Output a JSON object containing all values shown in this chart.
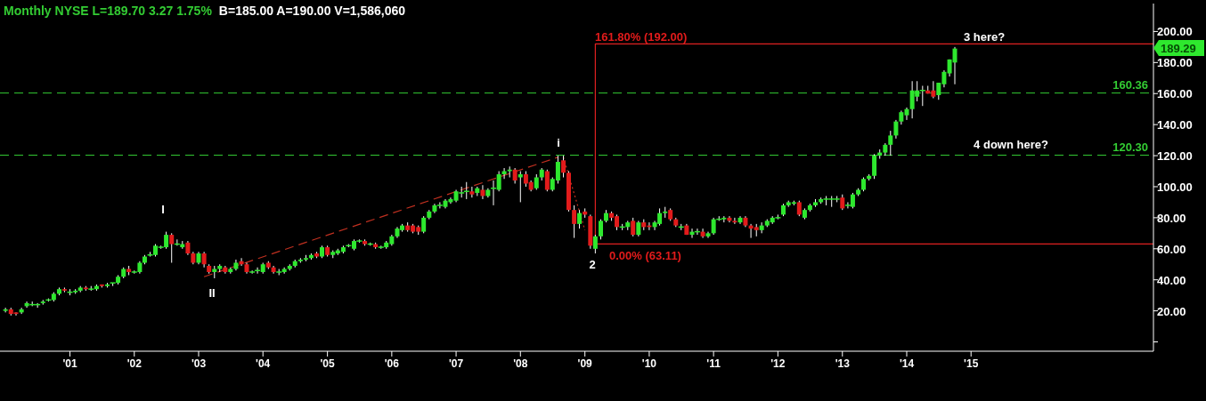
{
  "chart_data": {
    "type": "candlestick",
    "title": "Monthly  NYSE  L=189.70  3.27  1.75%",
    "subtitle": "B=185.00  A=190.00  V=1,586,060",
    "x": [
      "2000-01",
      "2000-02",
      "2000-03",
      "2000-04",
      "2000-05",
      "2000-06",
      "2000-07",
      "2000-08",
      "2000-09",
      "2000-10",
      "2000-11",
      "2000-12",
      "2001-01",
      "2001-02",
      "2001-03",
      "2001-04",
      "2001-05",
      "2001-06",
      "2001-07",
      "2001-08",
      "2001-09",
      "2001-10",
      "2001-11",
      "2001-12",
      "2002-01",
      "2002-02",
      "2002-03",
      "2002-04",
      "2002-05",
      "2002-06",
      "2002-07",
      "2002-08",
      "2002-09",
      "2002-10",
      "2002-11",
      "2002-12",
      "2003-01",
      "2003-02",
      "2003-03",
      "2003-04",
      "2003-05",
      "2003-06",
      "2003-07",
      "2003-08",
      "2003-09",
      "2003-10",
      "2003-11",
      "2003-12",
      "2004-01",
      "2004-02",
      "2004-03",
      "2004-04",
      "2004-05",
      "2004-06",
      "2004-07",
      "2004-08",
      "2004-09",
      "2004-10",
      "2004-11",
      "2004-12",
      "2005-01",
      "2005-02",
      "2005-03",
      "2005-04",
      "2005-05",
      "2005-06",
      "2005-07",
      "2005-08",
      "2005-09",
      "2005-10",
      "2005-11",
      "2005-12",
      "2006-01",
      "2006-02",
      "2006-03",
      "2006-04",
      "2006-05",
      "2006-06",
      "2006-07",
      "2006-08",
      "2006-09",
      "2006-10",
      "2006-11",
      "2006-12",
      "2007-01",
      "2007-02",
      "2007-03",
      "2007-04",
      "2007-05",
      "2007-06",
      "2007-07",
      "2007-08",
      "2007-09",
      "2007-10",
      "2007-11",
      "2007-12",
      "2008-01",
      "2008-02",
      "2008-03",
      "2008-04",
      "2008-05",
      "2008-06",
      "2008-07",
      "2008-08",
      "2008-09",
      "2008-10",
      "2008-11",
      "2008-12",
      "2009-01",
      "2009-02",
      "2009-03",
      "2009-04",
      "2009-05",
      "2009-06",
      "2009-07",
      "2009-08",
      "2009-09",
      "2009-10",
      "2009-11",
      "2009-12",
      "2010-01",
      "2010-02",
      "2010-03",
      "2010-04",
      "2010-05",
      "2010-06",
      "2010-07",
      "2010-08",
      "2010-09",
      "2010-10",
      "2010-11",
      "2010-12",
      "2011-01",
      "2011-02",
      "2011-03",
      "2011-04",
      "2011-05",
      "2011-06",
      "2011-07",
      "2011-08",
      "2011-09",
      "2011-10",
      "2011-11",
      "2011-12",
      "2012-01",
      "2012-02",
      "2012-03",
      "2012-04",
      "2012-05",
      "2012-06",
      "2012-07",
      "2012-08",
      "2012-09",
      "2012-10",
      "2012-11",
      "2012-12",
      "2013-01",
      "2013-02",
      "2013-03",
      "2013-04",
      "2013-05",
      "2013-06",
      "2013-07",
      "2013-08",
      "2013-09",
      "2013-10",
      "2013-11",
      "2013-12",
      "2014-01",
      "2014-02",
      "2014-03",
      "2014-04",
      "2014-05",
      "2014-06",
      "2014-07",
      "2014-08",
      "2014-09",
      "2014-10"
    ],
    "ohlc": [
      [
        20,
        22,
        19,
        21
      ],
      [
        21,
        22,
        17,
        18
      ],
      [
        19,
        19,
        17,
        18
      ],
      [
        19,
        22,
        18,
        21
      ],
      [
        23,
        26,
        22,
        25
      ],
      [
        24,
        26,
        23,
        24
      ],
      [
        24,
        25,
        22,
        24
      ],
      [
        25,
        27,
        24,
        26
      ],
      [
        27,
        28,
        26,
        27
      ],
      [
        27,
        32,
        26,
        31
      ],
      [
        31,
        35,
        30,
        34
      ],
      [
        34,
        35,
        32,
        33
      ],
      [
        32,
        34,
        30,
        32
      ],
      [
        32,
        34,
        31,
        33
      ],
      [
        33,
        36,
        32,
        35
      ],
      [
        35,
        36,
        33,
        34
      ],
      [
        34,
        36,
        33,
        34
      ],
      [
        34,
        37,
        33,
        36
      ],
      [
        37,
        37,
        35,
        36
      ],
      [
        36,
        38,
        35,
        37
      ],
      [
        38,
        38,
        36,
        38
      ],
      [
        38,
        43,
        37,
        42
      ],
      [
        42,
        48,
        41,
        47
      ],
      [
        47,
        49,
        43,
        45
      ],
      [
        45,
        46,
        44,
        45
      ],
      [
        45,
        52,
        44,
        51
      ],
      [
        51,
        56,
        50,
        55
      ],
      [
        56,
        58,
        55,
        56
      ],
      [
        56,
        63,
        55,
        62
      ],
      [
        61,
        62,
        60,
        61
      ],
      [
        61,
        71,
        60,
        69
      ],
      [
        69,
        70,
        51,
        63
      ],
      [
        63,
        66,
        62,
        63
      ],
      [
        61,
        65,
        60,
        63
      ],
      [
        64,
        65,
        56,
        57
      ],
      [
        57,
        58,
        50,
        51
      ],
      [
        51,
        58,
        50,
        57
      ],
      [
        57,
        58,
        48,
        50
      ],
      [
        49,
        50,
        44,
        45
      ],
      [
        45,
        49,
        41,
        47
      ],
      [
        47,
        50,
        45,
        49
      ],
      [
        48,
        49,
        44,
        45
      ],
      [
        45,
        48,
        44,
        47
      ],
      [
        47,
        53,
        46,
        51
      ],
      [
        52,
        54,
        49,
        50
      ],
      [
        50,
        51,
        44,
        45
      ],
      [
        45,
        46,
        44,
        45
      ],
      [
        46,
        48,
        44,
        46
      ],
      [
        45,
        51,
        44,
        50
      ],
      [
        51,
        52,
        47,
        48
      ],
      [
        48,
        49,
        44,
        45
      ],
      [
        45,
        47,
        43,
        45
      ],
      [
        45,
        48,
        44,
        47
      ],
      [
        47,
        50,
        46,
        49
      ],
      [
        49,
        53,
        48,
        52
      ],
      [
        52,
        54,
        51,
        53
      ],
      [
        53,
        56,
        52,
        54
      ],
      [
        54,
        57,
        53,
        56
      ],
      [
        57,
        58,
        54,
        55
      ],
      [
        55,
        62,
        54,
        61
      ],
      [
        61,
        62,
        55,
        56
      ],
      [
        56,
        59,
        54,
        58
      ],
      [
        57,
        60,
        56,
        59
      ],
      [
        58,
        62,
        57,
        61
      ],
      [
        62,
        63,
        61,
        62
      ],
      [
        60,
        66,
        59,
        65
      ],
      [
        65,
        66,
        64,
        65
      ],
      [
        65,
        66,
        62,
        63
      ],
      [
        63,
        64,
        62,
        63
      ],
      [
        63,
        64,
        60,
        61
      ],
      [
        61,
        62,
        60,
        61
      ],
      [
        61,
        65,
        60,
        64
      ],
      [
        63,
        69,
        62,
        68
      ],
      [
        68,
        74,
        67,
        73
      ],
      [
        72,
        76,
        71,
        75
      ],
      [
        75,
        77,
        71,
        72
      ],
      [
        75,
        76,
        70,
        71
      ],
      [
        74,
        75,
        69,
        71
      ],
      [
        71,
        81,
        70,
        80
      ],
      [
        80,
        85,
        79,
        84
      ],
      [
        84,
        89,
        83,
        88
      ],
      [
        88,
        90,
        86,
        88
      ],
      [
        87,
        92,
        86,
        91
      ],
      [
        90,
        93,
        89,
        92
      ],
      [
        91,
        98,
        90,
        97
      ],
      [
        96,
        100,
        93,
        96
      ],
      [
        97,
        103,
        92,
        97
      ],
      [
        97,
        100,
        93,
        95
      ],
      [
        96,
        100,
        94,
        99
      ],
      [
        98,
        101,
        92,
        94
      ],
      [
        94,
        99,
        93,
        98
      ],
      [
        99,
        104,
        88,
        99
      ],
      [
        98,
        110,
        97,
        108
      ],
      [
        108,
        112,
        105,
        110
      ],
      [
        110,
        113,
        106,
        111
      ],
      [
        111,
        112,
        102,
        104
      ],
      [
        106,
        110,
        90,
        108
      ],
      [
        108,
        110,
        100,
        102
      ],
      [
        103,
        104,
        97,
        98
      ],
      [
        99,
        108,
        98,
        106
      ],
      [
        106,
        112,
        104,
        111
      ],
      [
        110,
        111,
        97,
        98
      ],
      [
        98,
        106,
        97,
        105
      ],
      [
        104,
        120,
        102,
        116
      ],
      [
        117,
        120,
        106,
        109
      ],
      [
        109,
        110,
        84,
        85
      ],
      [
        85,
        88,
        67,
        76
      ],
      [
        76,
        85,
        73,
        83
      ],
      [
        84,
        86,
        80,
        82
      ],
      [
        81,
        82,
        60,
        62
      ],
      [
        60,
        69,
        57,
        68
      ],
      [
        68,
        79,
        66,
        78
      ],
      [
        78,
        85,
        77,
        83
      ],
      [
        83,
        84,
        78,
        80
      ],
      [
        81,
        82,
        72,
        74
      ],
      [
        74,
        76,
        72,
        74
      ],
      [
        74,
        78,
        72,
        77
      ],
      [
        78,
        80,
        68,
        69
      ],
      [
        69,
        78,
        68,
        77
      ],
      [
        77,
        79,
        72,
        74
      ],
      [
        75,
        77,
        72,
        74
      ],
      [
        74,
        78,
        72,
        77
      ],
      [
        76,
        86,
        75,
        83
      ],
      [
        83,
        87,
        80,
        84
      ],
      [
        85,
        86,
        78,
        79
      ],
      [
        79,
        80,
        74,
        75
      ],
      [
        74,
        76,
        72,
        74
      ],
      [
        75,
        76,
        69,
        69
      ],
      [
        69,
        73,
        67,
        71
      ],
      [
        71,
        73,
        69,
        71
      ],
      [
        71,
        73,
        67,
        68
      ],
      [
        68,
        71,
        67,
        70
      ],
      [
        70,
        80,
        69,
        79
      ],
      [
        79,
        81,
        78,
        79
      ],
      [
        79,
        81,
        77,
        80
      ],
      [
        80,
        81,
        77,
        78
      ],
      [
        78,
        80,
        76,
        77
      ],
      [
        77,
        81,
        76,
        80
      ],
      [
        80,
        81,
        74,
        75
      ],
      [
        75,
        76,
        67,
        73
      ],
      [
        74,
        76,
        68,
        72
      ],
      [
        72,
        77,
        70,
        75
      ],
      [
        75,
        79,
        74,
        78
      ],
      [
        77,
        81,
        76,
        80
      ],
      [
        80,
        82,
        79,
        80
      ],
      [
        82,
        89,
        81,
        88
      ],
      [
        88,
        91,
        87,
        90
      ],
      [
        89,
        91,
        88,
        90
      ],
      [
        90,
        91,
        81,
        82
      ],
      [
        80,
        86,
        79,
        85
      ],
      [
        85,
        89,
        84,
        88
      ],
      [
        88,
        92,
        87,
        90
      ],
      [
        90,
        93,
        89,
        92
      ],
      [
        92,
        94,
        88,
        92
      ],
      [
        92,
        94,
        87,
        92
      ],
      [
        92,
        94,
        90,
        92
      ],
      [
        93,
        95,
        85,
        86
      ],
      [
        88,
        90,
        86,
        88
      ],
      [
        87,
        96,
        86,
        95
      ],
      [
        95,
        99,
        94,
        98
      ],
      [
        98,
        106,
        97,
        105
      ],
      [
        105,
        108,
        104,
        107
      ],
      [
        107,
        121,
        105,
        120
      ],
      [
        120,
        124,
        118,
        122
      ],
      [
        122,
        128,
        120,
        127
      ],
      [
        127,
        136,
        120,
        133
      ],
      [
        133,
        143,
        131,
        142
      ],
      [
        142,
        149,
        140,
        148
      ],
      [
        146,
        151,
        143,
        150
      ],
      [
        150,
        168,
        144,
        162
      ],
      [
        158,
        168,
        155,
        162
      ],
      [
        162,
        165,
        152,
        162
      ],
      [
        162,
        165,
        160,
        160
      ],
      [
        162,
        168,
        157,
        158
      ],
      [
        159,
        167,
        156,
        167
      ],
      [
        166,
        175,
        164,
        174
      ],
      [
        173,
        182,
        171,
        182
      ],
      [
        180,
        190,
        166,
        189
      ]
    ],
    "series": [
      {
        "type": "line",
        "color": "#e02020",
        "line_style": "solid",
        "x": [
          "2017-11",
          "2009-03",
          "2009-03",
          "2017-11"
        ],
        "values": [
          63.11,
          63.11,
          192,
          192
        ]
      },
      {
        "type": "line",
        "color": "#c03020",
        "line_style": "dashed",
        "x": [
          "2003-02",
          "2008-08"
        ],
        "values": [
          42,
          119
        ]
      },
      {
        "type": "line",
        "color": "#c03020",
        "line_style": "dotted",
        "x": [
          "2008-09",
          "2009-01"
        ],
        "values": [
          119,
          72
        ]
      }
    ],
    "ref_lines": [
      {
        "axis": "y",
        "value": 160.36,
        "label": "160.36",
        "color": "#33cc33",
        "line_style": "dashed"
      },
      {
        "axis": "y",
        "value": 120.3,
        "label": "120.30",
        "color": "#33cc33",
        "line_style": "dashed"
      }
    ],
    "annotations": [
      "I",
      "II",
      "i",
      "2",
      "161.80% (192.00)",
      "0.00% (63.11)",
      "3 here?",
      "4 down here?",
      "189.29"
    ],
    "xlim": [
      "1999-12",
      "2017-11"
    ],
    "xticks": [
      {
        "value": "2001-01",
        "label": "'01"
      },
      {
        "value": "2002-01",
        "label": "'02"
      },
      {
        "value": "2003-01",
        "label": "'03"
      },
      {
        "value": "2004-01",
        "label": "'04"
      },
      {
        "value": "2005-01",
        "label": "'05"
      },
      {
        "value": "2006-01",
        "label": "'06"
      },
      {
        "value": "2007-01",
        "label": "'07"
      },
      {
        "value": "2008-01",
        "label": "'08"
      },
      {
        "value": "2009-01",
        "label": "'09"
      },
      {
        "value": "2010-01",
        "label": "'10"
      },
      {
        "value": "2011-01",
        "label": "'11"
      },
      {
        "value": "2012-01",
        "label": "'12"
      },
      {
        "value": "2013-01",
        "label": "'13"
      },
      {
        "value": "2014-01",
        "label": "'14"
      },
      {
        "value": "2015-01",
        "label": "'15"
      }
    ],
    "ylim": [
      -6,
      218
    ],
    "yticks": [
      {
        "value": 0,
        "label": null
      },
      {
        "value": 20,
        "label": "20.00"
      },
      {
        "value": 40,
        "label": "40.00"
      },
      {
        "value": 60,
        "label": "60.00"
      },
      {
        "value": 80,
        "label": "80.00"
      },
      {
        "value": 100,
        "label": "100.00"
      },
      {
        "value": 120,
        "label": "120.00"
      },
      {
        "value": 140,
        "label": "140.00"
      },
      {
        "value": 160,
        "label": "160.00"
      },
      {
        "value": 180,
        "label": "180.00"
      },
      {
        "value": 200,
        "label": "200.00"
      }
    ]
  }
}
